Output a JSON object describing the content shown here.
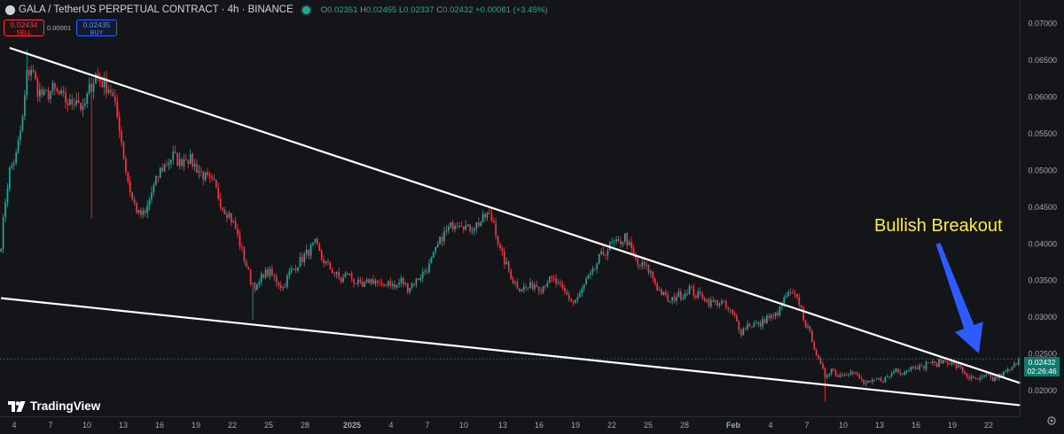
{
  "header": {
    "title": "GALA / TetherUS PERPETUAL CONTRACT · 4h · BINANCE",
    "ohlc": {
      "o_label": "O",
      "o": "0.02351",
      "h_label": "H",
      "h": "0.02455",
      "l_label": "L",
      "l": "0.02337",
      "c_label": "C",
      "c": "0.02432",
      "change": "+0.00081 (+3.45%)"
    }
  },
  "trade": {
    "sell_price": "0.02434",
    "sell_label": "SELL",
    "spread": "0.00001",
    "buy_price": "0.02435",
    "buy_label": "BUY"
  },
  "price_tag": {
    "price": "0.02432",
    "countdown": "02:26:46"
  },
  "annotation": {
    "text": "Bullish Breakout"
  },
  "logo": {
    "text": "TradingView"
  },
  "colors": {
    "background": "#141518",
    "up": "#26a69a",
    "down": "#f23645",
    "trendline": "#ffffff",
    "annotation": "#ffeb3b",
    "arrow": "#2d5bff"
  },
  "chart_data": {
    "type": "candlestick",
    "y_axis": {
      "range": [
        0.0165,
        0.0725
      ],
      "ticks": [
        "0.07000",
        "0.06500",
        "0.06000",
        "0.05500",
        "0.05000",
        "0.04500",
        "0.04000",
        "0.03500",
        "0.03000",
        "0.02500",
        "0.02000"
      ],
      "tick_values": [
        0.07,
        0.065,
        0.06,
        0.055,
        0.05,
        0.045,
        0.04,
        0.035,
        0.03,
        0.025,
        0.02
      ]
    },
    "x_axis": {
      "ticks": [
        "4",
        "7",
        "10",
        "13",
        "16",
        "19",
        "22",
        "25",
        "28",
        "2025",
        "4",
        "7",
        "10",
        "13",
        "16",
        "19",
        "22",
        "25",
        "28",
        "Feb",
        "4",
        "7",
        "10",
        "13",
        "16",
        "19",
        "22"
      ],
      "bold": [
        "2025",
        "Feb"
      ]
    },
    "price_path": [
      [
        0,
        0.04
      ],
      [
        2,
        0.046
      ],
      [
        4,
        0.05
      ],
      [
        7,
        0.052
      ],
      [
        10,
        0.057
      ],
      [
        12,
        0.063
      ],
      [
        14,
        0.064
      ],
      [
        17,
        0.061
      ],
      [
        20,
        0.06
      ],
      [
        24,
        0.061
      ],
      [
        28,
        0.06
      ],
      [
        32,
        0.059
      ],
      [
        35,
        0.06
      ],
      [
        38,
        0.058
      ],
      [
        41,
        0.061
      ],
      [
        44,
        0.063
      ],
      [
        47,
        0.062
      ],
      [
        51,
        0.061
      ],
      [
        55,
        0.056
      ],
      [
        58,
        0.05
      ],
      [
        61,
        0.046
      ],
      [
        64,
        0.044
      ],
      [
        67,
        0.044
      ],
      [
        70,
        0.047
      ],
      [
        74,
        0.05
      ],
      [
        77,
        0.051
      ],
      [
        80,
        0.052
      ],
      [
        83,
        0.051
      ],
      [
        86,
        0.052
      ],
      [
        89,
        0.051
      ],
      [
        92,
        0.05
      ],
      [
        95,
        0.049
      ],
      [
        99,
        0.048
      ],
      [
        103,
        0.045
      ],
      [
        106,
        0.044
      ],
      [
        109,
        0.042
      ],
      [
        113,
        0.038
      ],
      [
        116,
        0.035
      ],
      [
        119,
        0.034
      ],
      [
        122,
        0.036
      ],
      [
        125,
        0.036
      ],
      [
        128,
        0.035
      ],
      [
        131,
        0.034
      ],
      [
        134,
        0.036
      ],
      [
        137,
        0.037
      ],
      [
        140,
        0.038
      ],
      [
        143,
        0.039
      ],
      [
        146,
        0.04
      ],
      [
        149,
        0.038
      ],
      [
        152,
        0.037
      ],
      [
        155,
        0.036
      ],
      [
        158,
        0.035
      ],
      [
        161,
        0.036
      ],
      [
        164,
        0.035
      ],
      [
        168,
        0.034
      ],
      [
        171,
        0.035
      ],
      [
        174,
        0.035
      ],
      [
        177,
        0.034
      ],
      [
        180,
        0.035
      ],
      [
        183,
        0.034
      ],
      [
        186,
        0.035
      ],
      [
        189,
        0.034
      ],
      [
        193,
        0.035
      ],
      [
        196,
        0.036
      ],
      [
        199,
        0.037
      ],
      [
        202,
        0.039
      ],
      [
        205,
        0.041
      ],
      [
        208,
        0.042
      ],
      [
        211,
        0.043
      ],
      [
        214,
        0.043
      ],
      [
        217,
        0.042
      ],
      [
        220,
        0.0425
      ],
      [
        223,
        0.043
      ],
      [
        226,
        0.044
      ],
      [
        229,
        0.043
      ],
      [
        232,
        0.039
      ],
      [
        235,
        0.037
      ],
      [
        238,
        0.035
      ],
      [
        241,
        0.034
      ],
      [
        245,
        0.034
      ],
      [
        248,
        0.0345
      ],
      [
        251,
        0.034
      ],
      [
        254,
        0.035
      ],
      [
        257,
        0.035
      ],
      [
        260,
        0.034
      ],
      [
        263,
        0.033
      ],
      [
        266,
        0.032
      ],
      [
        269,
        0.033
      ],
      [
        272,
        0.035
      ],
      [
        275,
        0.036
      ],
      [
        278,
        0.038
      ],
      [
        281,
        0.039
      ],
      [
        284,
        0.04
      ],
      [
        287,
        0.04
      ],
      [
        290,
        0.041
      ],
      [
        293,
        0.039
      ],
      [
        296,
        0.037
      ],
      [
        299,
        0.037
      ],
      [
        302,
        0.036
      ],
      [
        305,
        0.034
      ],
      [
        308,
        0.033
      ],
      [
        311,
        0.032
      ],
      [
        314,
        0.033
      ],
      [
        317,
        0.033
      ],
      [
        320,
        0.034
      ],
      [
        323,
        0.033
      ],
      [
        326,
        0.033
      ],
      [
        329,
        0.032
      ],
      [
        332,
        0.032
      ],
      [
        335,
        0.032
      ],
      [
        338,
        0.031
      ],
      [
        341,
        0.03
      ],
      [
        344,
        0.028
      ],
      [
        347,
        0.029
      ],
      [
        350,
        0.029
      ],
      [
        353,
        0.029
      ],
      [
        356,
        0.03
      ],
      [
        359,
        0.03
      ],
      [
        362,
        0.031
      ],
      [
        365,
        0.033
      ],
      [
        368,
        0.033
      ],
      [
        371,
        0.032
      ],
      [
        374,
        0.029
      ],
      [
        377,
        0.027
      ],
      [
        380,
        0.024
      ],
      [
        383,
        0.022
      ],
      [
        386,
        0.023
      ],
      [
        389,
        0.022
      ],
      [
        392,
        0.0225
      ],
      [
        395,
        0.0225
      ],
      [
        398,
        0.022
      ],
      [
        401,
        0.021
      ],
      [
        404,
        0.021
      ],
      [
        407,
        0.0215
      ],
      [
        410,
        0.0215
      ],
      [
        413,
        0.022
      ],
      [
        416,
        0.023
      ],
      [
        419,
        0.0225
      ],
      [
        422,
        0.023
      ],
      [
        425,
        0.0235
      ],
      [
        428,
        0.023
      ],
      [
        431,
        0.024
      ],
      [
        434,
        0.0235
      ],
      [
        437,
        0.024
      ],
      [
        440,
        0.024
      ],
      [
        443,
        0.0235
      ],
      [
        446,
        0.023
      ],
      [
        449,
        0.022
      ],
      [
        452,
        0.0215
      ],
      [
        455,
        0.0215
      ],
      [
        458,
        0.022
      ],
      [
        461,
        0.0215
      ],
      [
        464,
        0.022
      ],
      [
        467,
        0.0225
      ],
      [
        470,
        0.023
      ],
      [
        473,
        0.0243
      ]
    ],
    "wick_extremes": [
      {
        "bar": 12,
        "high": 0.0665
      },
      {
        "bar": 42,
        "low": 0.0435
      },
      {
        "bar": 117,
        "low": 0.0297
      },
      {
        "bar": 383,
        "low": 0.0185
      }
    ],
    "bar_count": 474,
    "last": {
      "open": 0.02351,
      "high": 0.02455,
      "low": 0.02337,
      "close": 0.02432
    },
    "trendlines": [
      {
        "name": "upper",
        "from": {
          "bar": 4,
          "price": 0.0667
        },
        "to": {
          "bar": 474,
          "price": 0.021
        }
      },
      {
        "name": "lower",
        "from": {
          "bar": 0,
          "price": 0.0326
        },
        "to": {
          "bar": 474,
          "price": 0.018
        }
      }
    ],
    "current_price_line": 0.02432,
    "grid": false,
    "log_scale": false
  }
}
